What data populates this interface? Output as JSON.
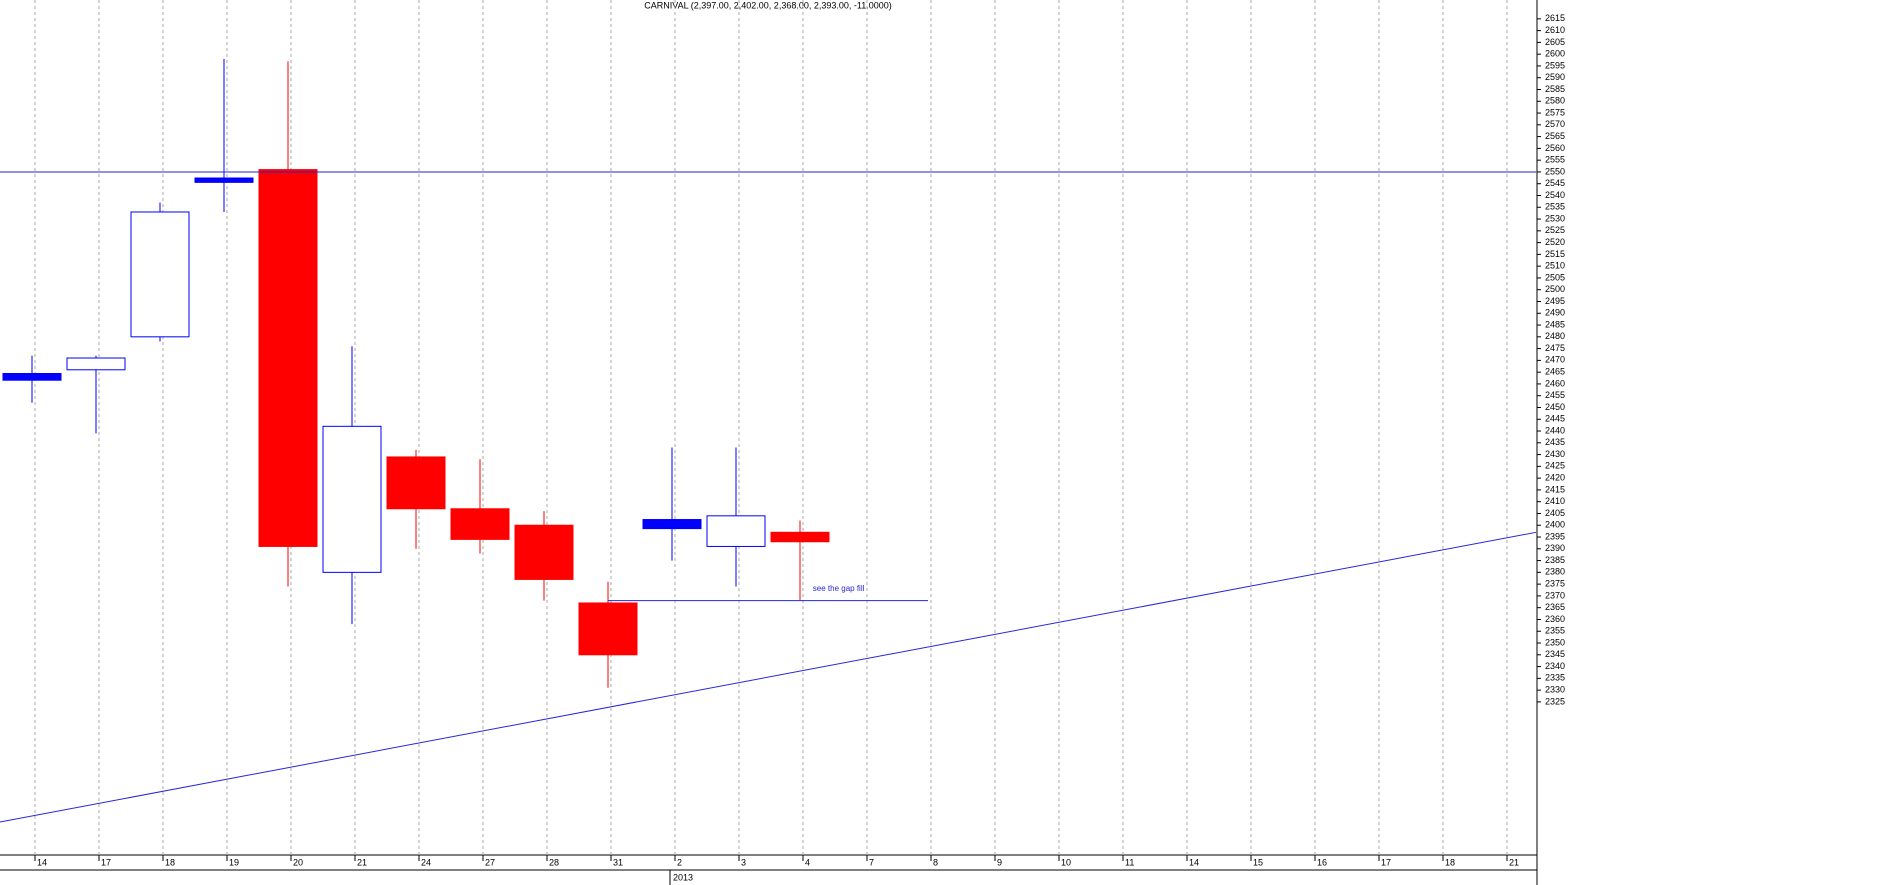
{
  "chart_data": {
    "type": "candlestick",
    "title": "CARNIVAL (2,397.00, 2,402.00, 2,368.00, 2,393.00, -11.0000)",
    "categories": [
      "14",
      "17",
      "18",
      "19",
      "20",
      "21",
      "24",
      "27",
      "28",
      "31",
      "2",
      "3",
      "4",
      "7",
      "8",
      "9",
      "10",
      "11",
      "14",
      "15",
      "16",
      "17",
      "18",
      "21"
    ],
    "year_label": "2013",
    "open": [
      2462,
      2466,
      2480,
      2546,
      2551,
      2380,
      2429,
      2407,
      2400,
      2367,
      2399,
      2391,
      2397,
      null,
      null,
      null,
      null,
      null,
      null,
      null,
      null,
      null,
      null,
      null
    ],
    "high": [
      2472,
      2472,
      2537,
      2598,
      2597,
      2476,
      2432,
      2428,
      2406,
      2376,
      2433,
      2433,
      2402,
      null,
      null,
      null,
      null,
      null,
      null,
      null,
      null,
      null,
      null,
      null
    ],
    "low": [
      2452,
      2439,
      2478,
      2533,
      2374,
      2358,
      2390,
      2388,
      2368,
      2331,
      2385,
      2374,
      2368,
      null,
      null,
      null,
      null,
      null,
      null,
      null,
      null,
      null,
      null,
      null
    ],
    "close": [
      2464,
      2471,
      2533,
      2547,
      2391,
      2442,
      2407,
      2394,
      2377,
      2345,
      2402,
      2404,
      2393,
      null,
      null,
      null,
      null,
      null,
      null,
      null,
      null,
      null,
      null,
      null
    ],
    "up_color": "#0000ff",
    "down_color": "#ff0000",
    "line_color": "#2626d9",
    "ylim": [
      2260,
      2623
    ],
    "yticks": [
      2325,
      2330,
      2335,
      2340,
      2345,
      2350,
      2355,
      2360,
      2365,
      2370,
      2375,
      2380,
      2385,
      2390,
      2395,
      2400,
      2405,
      2410,
      2415,
      2420,
      2425,
      2430,
      2435,
      2440,
      2445,
      2450,
      2455,
      2460,
      2465,
      2470,
      2475,
      2480,
      2485,
      2490,
      2495,
      2500,
      2505,
      2510,
      2515,
      2520,
      2525,
      2530,
      2535,
      2540,
      2545,
      2550,
      2555,
      2560,
      2565,
      2570,
      2575,
      2580,
      2585,
      2590,
      2595,
      2600,
      2605,
      2610,
      2615
    ],
    "grid": true,
    "lines": [
      {
        "x": [
          -0.5,
          23.5
        ],
        "y": [
          2550,
          2550
        ]
      },
      {
        "x": [
          -0.5,
          23.5
        ],
        "y": [
          2274,
          2397
        ]
      },
      {
        "x": [
          9,
          14
        ],
        "y": [
          2368,
          2368
        ]
      }
    ],
    "annotations": [
      {
        "text": "see the gap fill",
        "x": 12.2,
        "y": 2373
      }
    ]
  }
}
